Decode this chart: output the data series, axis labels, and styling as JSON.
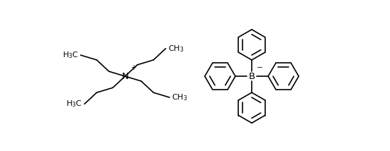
{
  "bg_color": "#ffffff",
  "line_color": "#000000",
  "figsize": [
    5.5,
    2.14
  ],
  "dpi": 100,
  "lw": 1.2,
  "font_size_label": 8.0,
  "font_size_atom": 9.5,
  "font_size_charge": 7.5
}
